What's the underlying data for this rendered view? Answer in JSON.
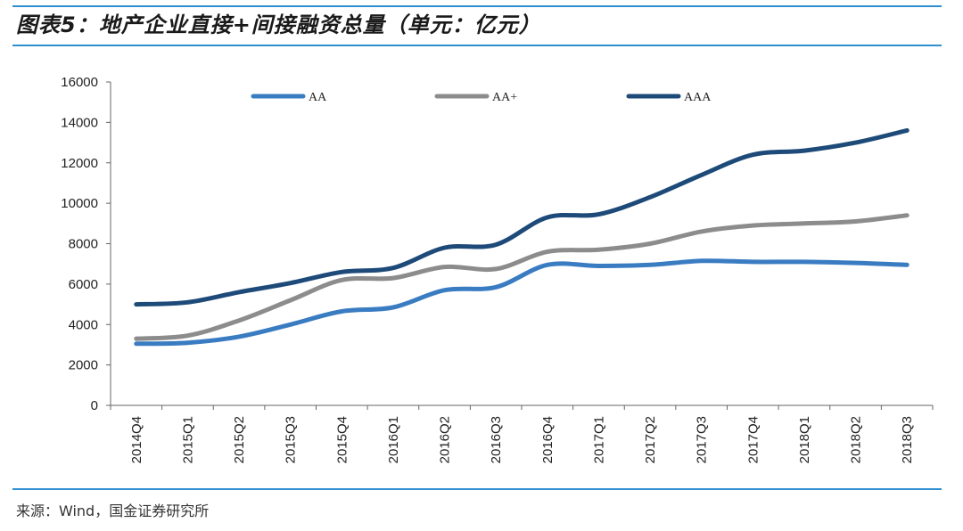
{
  "title": "图表5：地产企业直接+间接融资总量（单元：亿元）",
  "source": "来源：Wind，国金证券研究所",
  "colors": {
    "AA": "#3a7cc2",
    "AA+": "#8c8c8c",
    "AAA": "#1d4a78",
    "rule": "#2f8fd0"
  },
  "chart_data": {
    "type": "line",
    "title": "地产企业直接+间接融资总量（单元：亿元）",
    "xlabel": "",
    "ylabel": "",
    "ylim": [
      0,
      16000
    ],
    "yticks": [
      0,
      2000,
      4000,
      6000,
      8000,
      10000,
      12000,
      14000,
      16000
    ],
    "grid": false,
    "legend_position": "top",
    "categories": [
      "2014Q4",
      "2015Q1",
      "2015Q2",
      "2015Q3",
      "2015Q4",
      "2016Q1",
      "2016Q2",
      "2016Q3",
      "2016Q4",
      "2017Q1",
      "2017Q2",
      "2017Q3",
      "2017Q4",
      "2018Q1",
      "2018Q2",
      "2018Q3"
    ],
    "series": [
      {
        "name": "AA",
        "values": [
          3050,
          3100,
          3400,
          4000,
          4650,
          4850,
          5700,
          5850,
          6950,
          6900,
          6950,
          7150,
          7100,
          7100,
          7050,
          6950
        ]
      },
      {
        "name": "AA+",
        "values": [
          3300,
          3450,
          4200,
          5200,
          6200,
          6300,
          6850,
          6750,
          7600,
          7700,
          8000,
          8600,
          8900,
          9000,
          9100,
          9400
        ]
      },
      {
        "name": "AAA",
        "values": [
          5000,
          5100,
          5600,
          6050,
          6600,
          6800,
          7800,
          7950,
          9300,
          9450,
          10300,
          11400,
          12400,
          12600,
          13000,
          13600
        ]
      }
    ]
  }
}
